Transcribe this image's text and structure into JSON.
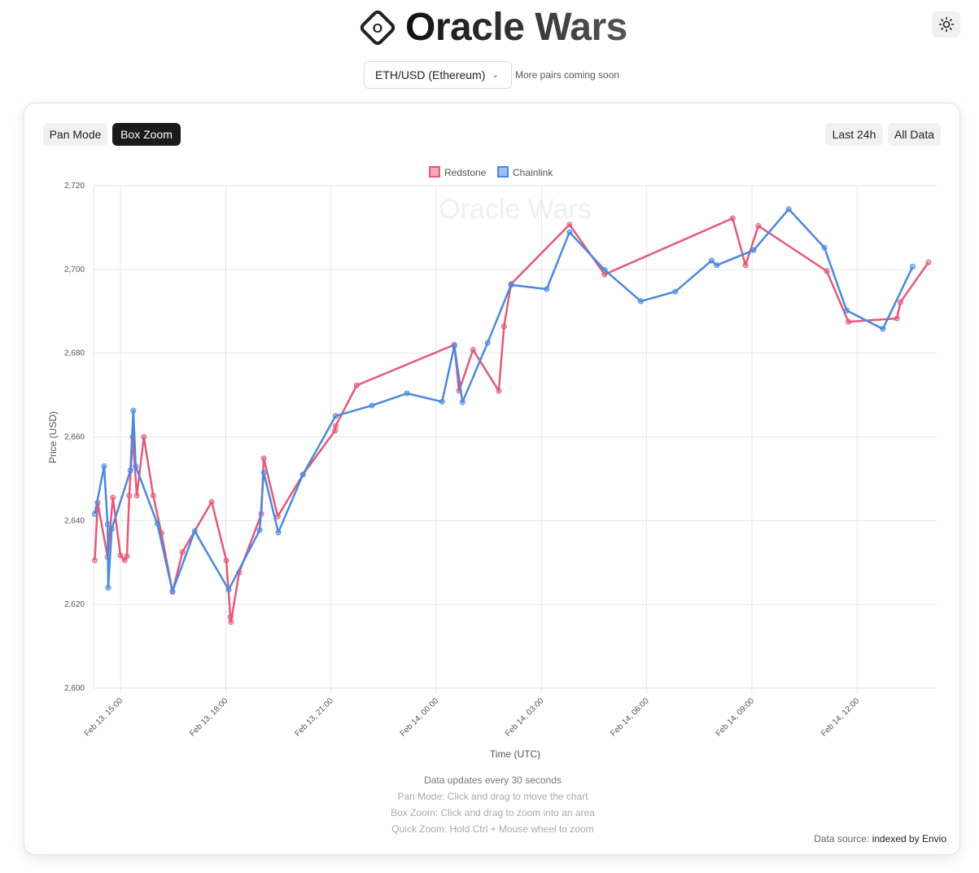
{
  "header": {
    "title": "Oracle Wars",
    "logo_letter": "O",
    "theme_icon": "sun-icon"
  },
  "pair_select": {
    "value": "ETH/USD (Ethereum)",
    "note": "More pairs coming soon"
  },
  "toolbar": {
    "pan": "Pan Mode",
    "box_zoom": "Box Zoom",
    "active": "Box Zoom",
    "last24": "Last 24h",
    "all": "All Data"
  },
  "footer": {
    "update": "Data updates every 30 seconds",
    "pan_help": "Pan Mode: Click and drag to move the chart",
    "zoom_help": "Box Zoom: Click and drag to zoom into an area",
    "quick_help": "Quick Zoom: Hold Ctrl + Mouse wheel to zoom",
    "source_prefix": "Data source: ",
    "source": "indexed by Envio"
  },
  "chart_data": {
    "type": "line",
    "watermark": "Oracle Wars",
    "xlabel": "Time (UTC)",
    "ylabel": "Price (USD)",
    "ylim": [
      2600,
      2720
    ],
    "yticks": [
      "2,600",
      "2,620",
      "2,640",
      "2,660",
      "2,680",
      "2,700",
      "2,720"
    ],
    "xlim": [
      "Feb 13, 14:14",
      "Feb 14, 14:16"
    ],
    "xticks": [
      "Feb 13, 15:00",
      "Feb 13, 18:00",
      "Feb 13, 21:00",
      "Feb 14, 00:00",
      "Feb 14, 03:00",
      "Feb 14, 06:00",
      "Feb 14, 09:00",
      "Feb 14, 12:00"
    ],
    "grid": true,
    "legend": "top",
    "series": [
      {
        "name": "Redstone",
        "color": "#e45a78",
        "points": [
          [
            "Feb 13, 14:16",
            2630.5
          ],
          [
            "Feb 13, 14:21",
            2644.3
          ],
          [
            "Feb 13, 14:38",
            2631.3
          ],
          [
            "Feb 13, 14:47",
            2645.5
          ],
          [
            "Feb 13, 15:00",
            2631.7
          ],
          [
            "Feb 13, 15:07",
            2630.5
          ],
          [
            "Feb 13, 15:11",
            2631.5
          ],
          [
            "Feb 13, 15:15",
            2646
          ],
          [
            "Feb 13, 15:21",
            2660
          ],
          [
            "Feb 13, 15:28",
            2646
          ],
          [
            "Feb 13, 15:40",
            2660
          ],
          [
            "Feb 13, 15:56",
            2646
          ],
          [
            "Feb 13, 16:10",
            2637
          ],
          [
            "Feb 13, 16:29",
            2623
          ],
          [
            "Feb 13, 16:46",
            2632.5
          ],
          [
            "Feb 13, 17:36",
            2644.5
          ],
          [
            "Feb 13, 18:01",
            2630.5
          ],
          [
            "Feb 13, 18:08",
            2617
          ],
          [
            "Feb 13, 18:09",
            2615.8
          ],
          [
            "Feb 13, 18:23",
            2627.6
          ],
          [
            "Feb 13, 19:01",
            2641.6
          ],
          [
            "Feb 13, 19:05",
            2654.9
          ],
          [
            "Feb 13, 19:29",
            2641
          ],
          [
            "Feb 13, 20:12",
            2651
          ],
          [
            "Feb 13, 21:07",
            2661.5
          ],
          [
            "Feb 13, 21:08",
            2662.6
          ],
          [
            "Feb 13, 21:44",
            2672.3
          ],
          [
            "Feb 14, 00:31",
            2682
          ],
          [
            "Feb 14, 00:39",
            2671
          ],
          [
            "Feb 14, 01:03",
            2680.8
          ],
          [
            "Feb 14, 01:47",
            2671
          ],
          [
            "Feb 14, 01:56",
            2686.4
          ],
          [
            "Feb 14, 02:08",
            2696.5
          ],
          [
            "Feb 14, 03:48",
            2710.7
          ],
          [
            "Feb 14, 04:48",
            2698.8
          ],
          [
            "Feb 14, 08:27",
            2712.2
          ],
          [
            "Feb 14, 08:49",
            2701
          ],
          [
            "Feb 14, 09:11",
            2710.4
          ],
          [
            "Feb 14, 11:08",
            2699.6
          ],
          [
            "Feb 14, 11:45",
            2687.5
          ],
          [
            "Feb 14, 13:08",
            2688.3
          ],
          [
            "Feb 14, 13:14",
            2692.2
          ],
          [
            "Feb 14, 14:02",
            2701.7
          ]
        ]
      },
      {
        "name": "Chainlink",
        "color": "#4a89e0",
        "points": [
          [
            "Feb 13, 14:16",
            2641.6
          ],
          [
            "Feb 13, 14:32",
            2653
          ],
          [
            "Feb 13, 14:38",
            2639.1
          ],
          [
            "Feb 13, 14:39",
            2624
          ],
          [
            "Feb 13, 14:45",
            2638
          ],
          [
            "Feb 13, 15:17",
            2652
          ],
          [
            "Feb 13, 15:22",
            2666.3
          ],
          [
            "Feb 13, 15:26",
            2653
          ],
          [
            "Feb 13, 16:03",
            2639.3
          ],
          [
            "Feb 13, 16:29",
            2623.1
          ],
          [
            "Feb 13, 17:07",
            2637.5
          ],
          [
            "Feb 13, 18:05",
            2623.5
          ],
          [
            "Feb 13, 18:58",
            2637.7
          ],
          [
            "Feb 13, 19:05",
            2651.5
          ],
          [
            "Feb 13, 19:30",
            2637.2
          ],
          [
            "Feb 13, 20:12",
            2651
          ],
          [
            "Feb 13, 21:08",
            2665
          ],
          [
            "Feb 13, 22:10",
            2667.5
          ],
          [
            "Feb 13, 23:10",
            2670.4
          ],
          [
            "Feb 14, 00:10",
            2668.4
          ],
          [
            "Feb 14, 00:31",
            2681.7
          ],
          [
            "Feb 14, 00:45",
            2668.3
          ],
          [
            "Feb 14, 01:28",
            2682.5
          ],
          [
            "Feb 14, 02:08",
            2696.3
          ],
          [
            "Feb 14, 03:09",
            2695.3
          ],
          [
            "Feb 14, 03:48",
            2708.9
          ],
          [
            "Feb 14, 04:48",
            2699.9
          ],
          [
            "Feb 14, 05:50",
            2692.4
          ],
          [
            "Feb 14, 06:49",
            2694.7
          ],
          [
            "Feb 14, 07:51",
            2702.1
          ],
          [
            "Feb 14, 08:00",
            2701
          ],
          [
            "Feb 14, 09:03",
            2704.6
          ],
          [
            "Feb 14, 10:03",
            2714.4
          ],
          [
            "Feb 14, 11:04",
            2705.2
          ],
          [
            "Feb 14, 11:42",
            2690.2
          ],
          [
            "Feb 14, 12:44",
            2685.8
          ],
          [
            "Feb 14, 13:35",
            2700.7
          ]
        ]
      }
    ]
  }
}
